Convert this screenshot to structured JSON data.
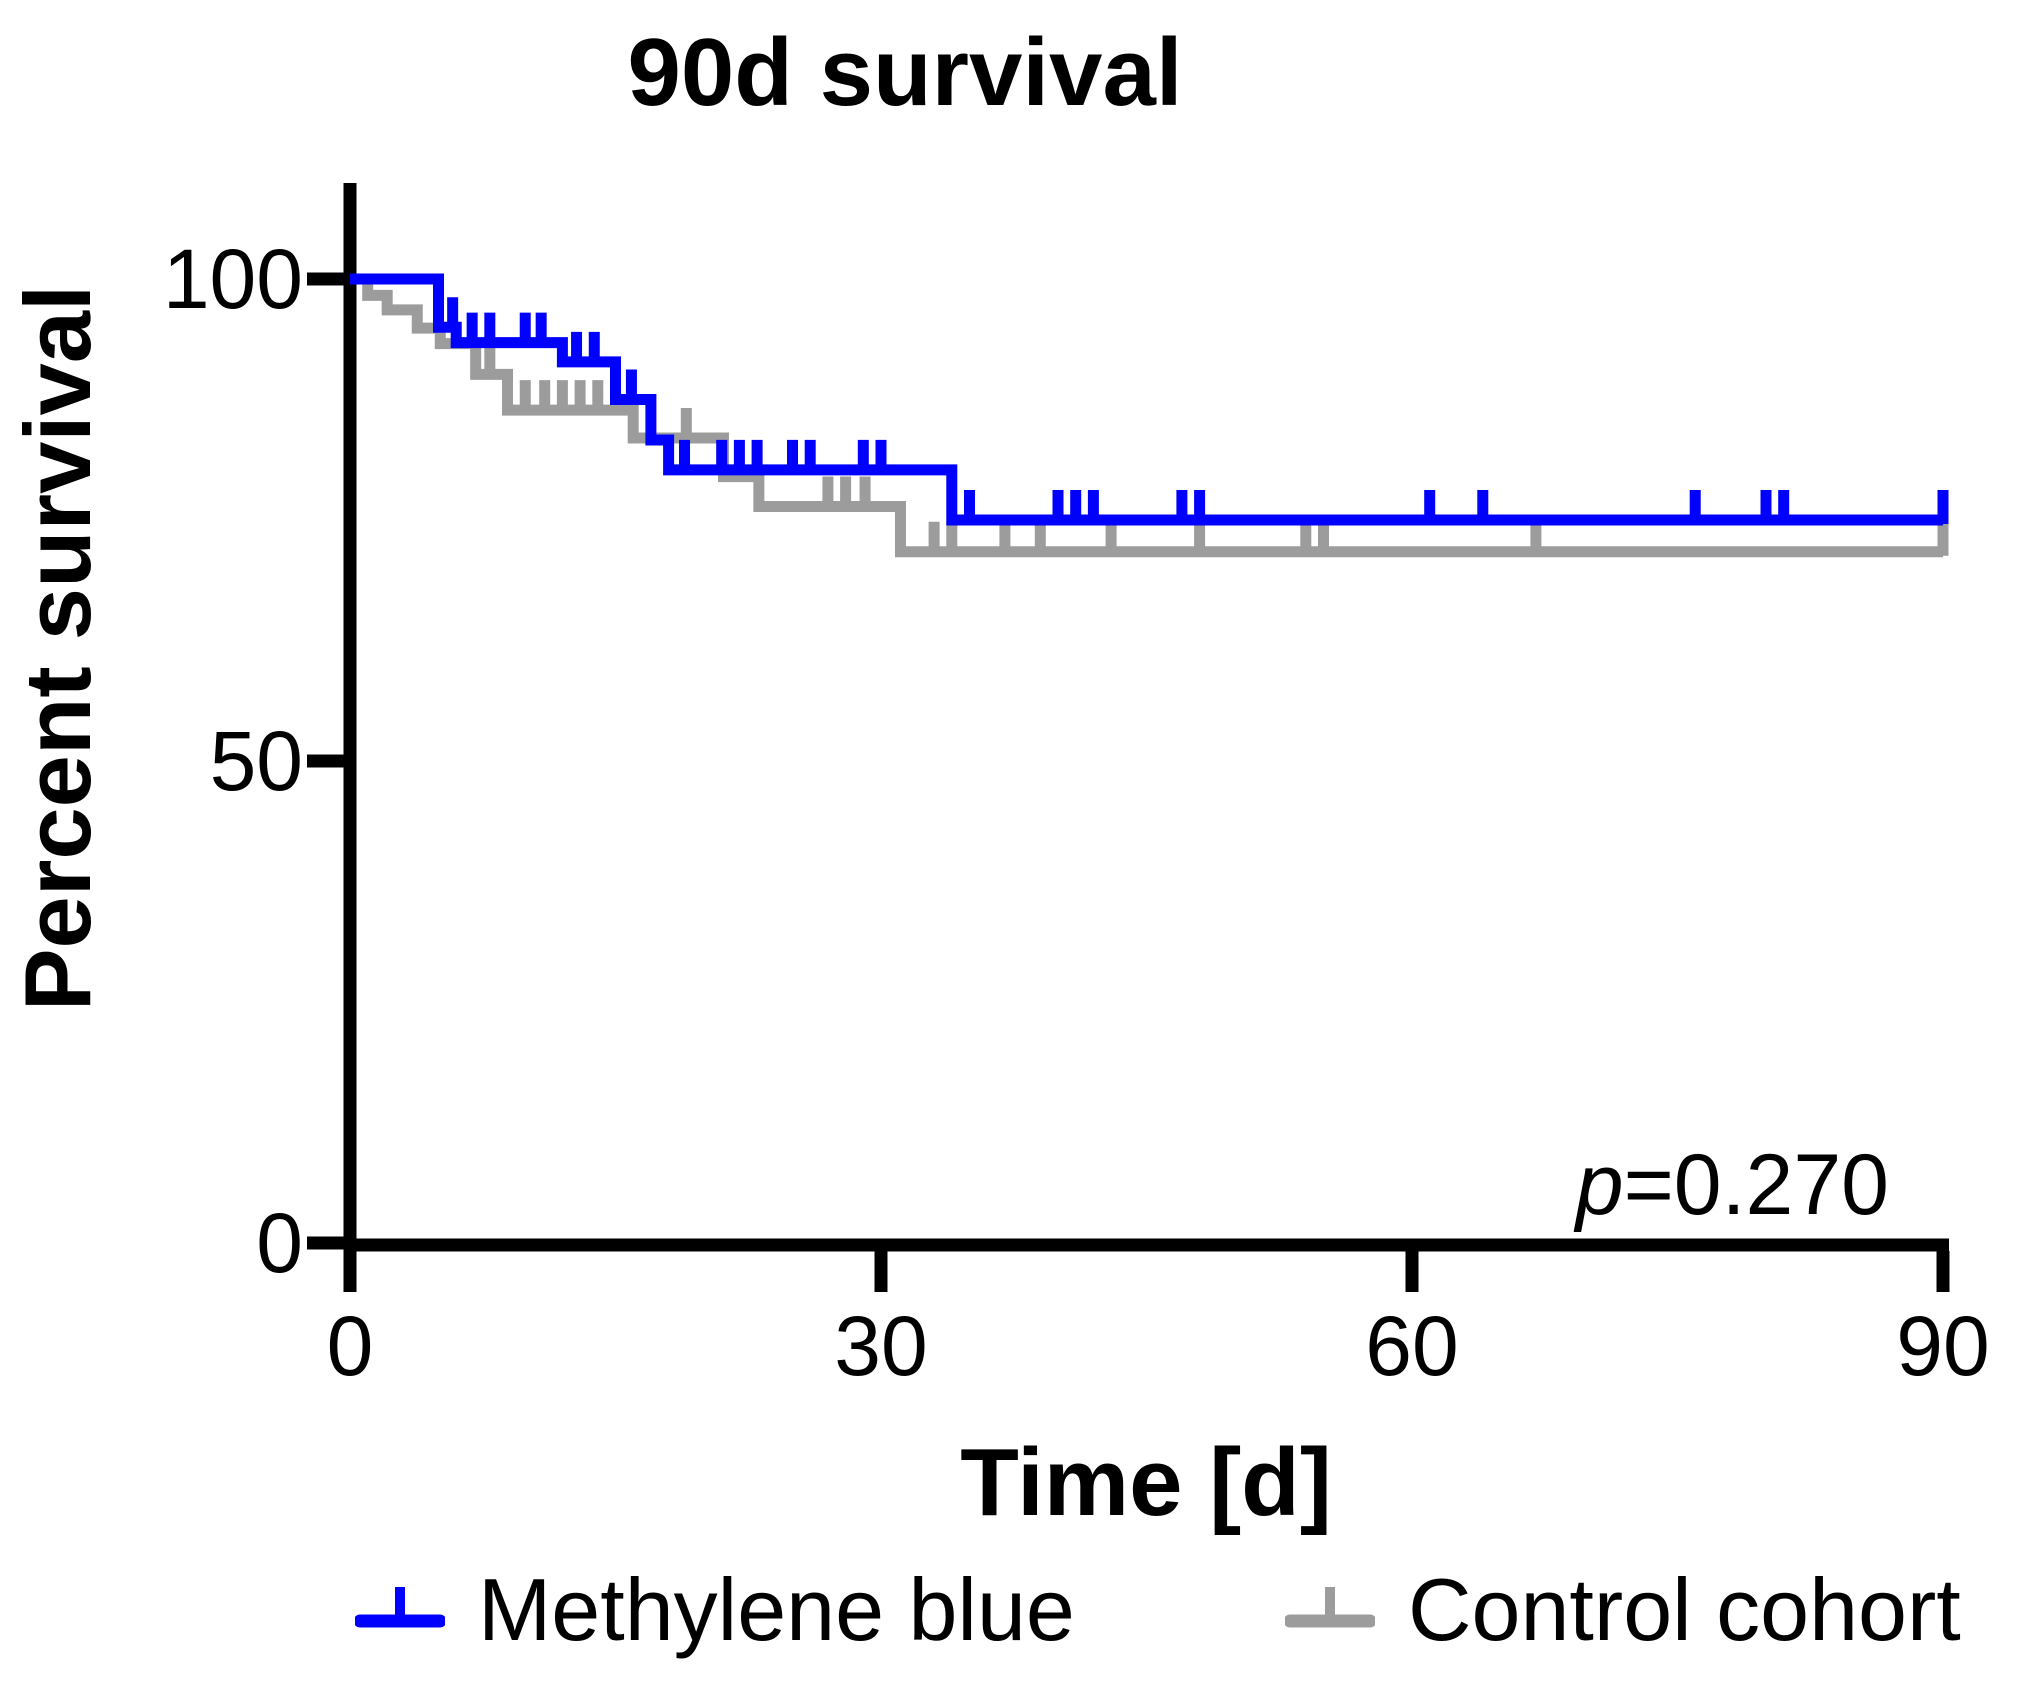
{
  "title": "90d survival",
  "y_axis": {
    "label": "Percent survival",
    "tick_labels": [
      "100",
      "50",
      "0"
    ]
  },
  "x_axis": {
    "label": "Time [d]",
    "tick_labels": [
      "0",
      "30",
      "60",
      "90"
    ]
  },
  "annotation": {
    "p_italic": "p",
    "p_rest": "=0.270"
  },
  "legend": {
    "items": [
      {
        "label": "Methylene blue",
        "color": "#0000ff"
      },
      {
        "label": "Control cohort",
        "color": "#9c9c9c"
      }
    ]
  },
  "colors": {
    "axis": "#000000",
    "text": "#000000",
    "background": "#ffffff",
    "methylene_blue": "#0000ff",
    "control_gray": "#9c9c9c"
  },
  "chart_data": {
    "type": "line",
    "subtype": "kaplan-meier-step-survival",
    "title": "90d survival",
    "xlabel": "Time [d]",
    "ylabel": "Percent survival",
    "xlim": [
      0,
      90
    ],
    "ylim": [
      0,
      110
    ],
    "x_ticks": [
      0,
      30,
      60,
      90
    ],
    "y_ticks": [
      100,
      50,
      0
    ],
    "grid": false,
    "legend_position": "bottom",
    "p_value_annotation": "p=0.270",
    "series": [
      {
        "name": "Methylene blue",
        "color": "#0000ff",
        "steps": [
          [
            0,
            100
          ],
          [
            5,
            95.0
          ],
          [
            6,
            93.4
          ],
          [
            12,
            91.4
          ],
          [
            15,
            87.5
          ],
          [
            17,
            83.3
          ],
          [
            18,
            80.2
          ],
          [
            34,
            75.0
          ]
        ],
        "end_day": 90,
        "final_percent": 75.0,
        "censor_days": [
          5.8,
          6.9,
          7.9,
          9.9,
          10.8,
          12.8,
          13.8,
          15.9,
          18.9,
          21,
          22,
          23,
          25,
          26,
          29,
          30,
          35,
          40,
          41,
          42,
          47,
          48,
          61,
          64,
          76,
          80,
          81,
          90
        ]
      },
      {
        "name": "Control cohort",
        "color": "#9c9c9c",
        "steps": [
          [
            0,
            100
          ],
          [
            1,
            98.3
          ],
          [
            2.1,
            96.8
          ],
          [
            3.8,
            94.9
          ],
          [
            5.1,
            93.3
          ],
          [
            7.1,
            90.1
          ],
          [
            8.9,
            86.4
          ],
          [
            16,
            83.5
          ],
          [
            21.1,
            79.5
          ],
          [
            23.1,
            76.4
          ],
          [
            31.1,
            71.7
          ]
        ],
        "end_day": 90,
        "final_percent": 71.7,
        "censor_days": [
          7.9,
          9.9,
          11,
          12,
          13,
          14,
          19,
          27,
          28,
          29.1,
          33,
          34,
          37,
          39,
          43,
          48,
          54,
          55,
          67,
          90
        ]
      }
    ]
  }
}
